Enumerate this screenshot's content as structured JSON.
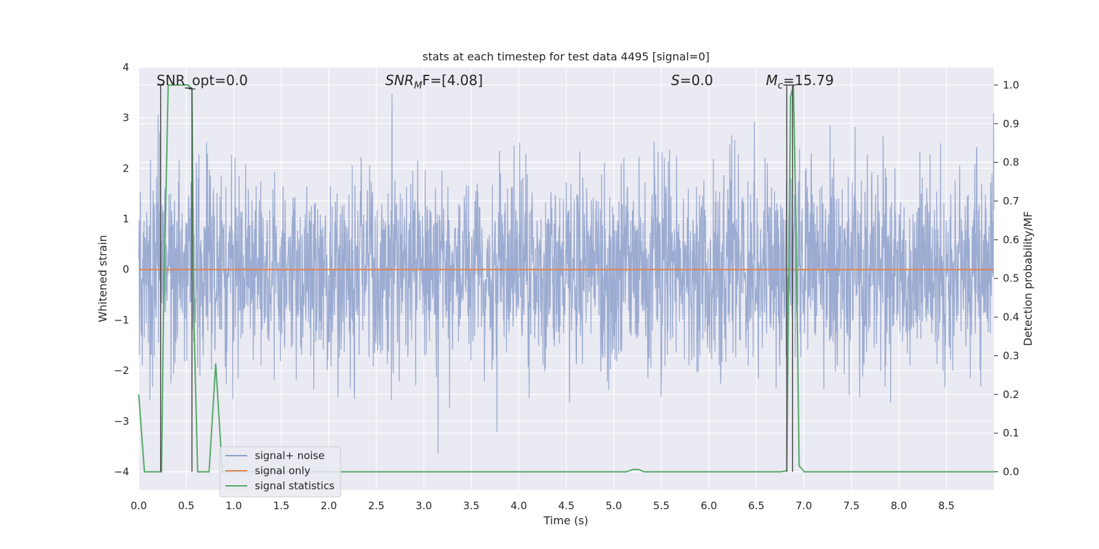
{
  "chart_data": {
    "type": "line",
    "title": "stats at each timestep for test data 4495 [signal=0]",
    "xlabel": "Time (s)",
    "ylabel_left": "Whitened strain",
    "ylabel_right": "Detection probability/MF",
    "xlim": [
      0.0,
      9.0
    ],
    "ylim_left": [
      -4.36,
      4.0
    ],
    "ylim_right": [
      -0.047,
      1.046
    ],
    "x_ticks": [
      "0.0",
      "0.5",
      "1.0",
      "1.5",
      "2.0",
      "2.5",
      "3.0",
      "3.5",
      "4.0",
      "4.5",
      "5.0",
      "5.5",
      "6.0",
      "6.5",
      "7.0",
      "7.5",
      "8.0",
      "8.5"
    ],
    "x_tick_values": [
      0.0,
      0.5,
      1.0,
      1.5,
      2.0,
      2.5,
      3.0,
      3.5,
      4.0,
      4.5,
      5.0,
      5.5,
      6.0,
      6.5,
      7.0,
      7.5,
      8.0,
      8.5
    ],
    "y_left_ticks": [
      "4",
      "3",
      "2",
      "1",
      "0",
      "−1",
      "−2",
      "−3",
      "−4"
    ],
    "y_left_tick_values": [
      4,
      3,
      2,
      1,
      0,
      -1,
      -2,
      -3,
      -4
    ],
    "y_right_ticks": [
      "1.0",
      "0.9",
      "0.8",
      "0.7",
      "0.6",
      "0.5",
      "0.4",
      "0.3",
      "0.2",
      "0.1",
      "0.0"
    ],
    "y_right_tick_values": [
      1.0,
      0.9,
      0.8,
      0.7,
      0.6,
      0.5,
      0.4,
      0.3,
      0.2,
      0.1,
      0.0
    ],
    "annotations": {
      "snr_opt": "SNR_opt=0.0",
      "snr_mf_base": "SNR",
      "snr_mf_sub": "M",
      "snr_mf_tail": "F=[4.08]",
      "s_base": "S",
      "s_tail": "=0.0",
      "mc_base": "M",
      "mc_sub": "c",
      "mc_tail": "=15.79"
    },
    "legend": {
      "placement": "lower-left",
      "entries": [
        "signal+ noise",
        "signal only",
        "signal statistics"
      ]
    },
    "series": [
      {
        "name": "signal+ noise",
        "axis": "left",
        "color": "#8da0cb",
        "style": "noise",
        "amplitude_sigma": 1.0,
        "x_range": [
          0.0,
          9.0
        ]
      },
      {
        "name": "signal only",
        "axis": "left",
        "color": "#dd8452",
        "x": [
          0.0,
          9.0
        ],
        "y": [
          0.0,
          0.0
        ]
      },
      {
        "name": "signal statistics",
        "axis": "right",
        "color": "#55a868",
        "x": [
          0.0,
          0.06,
          0.24,
          0.26,
          0.31,
          0.52,
          0.56,
          0.58,
          0.62,
          0.74,
          0.81,
          0.88,
          0.92,
          5.13,
          5.2,
          5.26,
          5.32,
          6.76,
          6.82,
          6.86,
          6.89,
          6.92,
          6.95,
          6.99,
          7.0,
          9.0
        ],
        "y": [
          0.2,
          0.0,
          0.0,
          0.4,
          1.0,
          1.0,
          0.99,
          0.4,
          0.0,
          0.0,
          0.28,
          0.0,
          0.0,
          0.0,
          0.006,
          0.006,
          0.0,
          0.0,
          0.003,
          0.97,
          1.0,
          0.6,
          0.015,
          0.005,
          0.0,
          0.0
        ]
      }
    ],
    "vertical_markers": [
      {
        "x": 0.23,
        "y_top": 1.0,
        "y_bottom": 0.0,
        "axis": "right"
      },
      {
        "x": 0.56,
        "y_top": 0.99,
        "y_bottom": 0.0,
        "axis": "right"
      },
      {
        "x": 6.82,
        "y_top": 1.0,
        "y_bottom": 0.0,
        "axis": "right"
      },
      {
        "x": 6.88,
        "y_top": 1.0,
        "y_bottom": 0.0,
        "axis": "right"
      }
    ]
  }
}
